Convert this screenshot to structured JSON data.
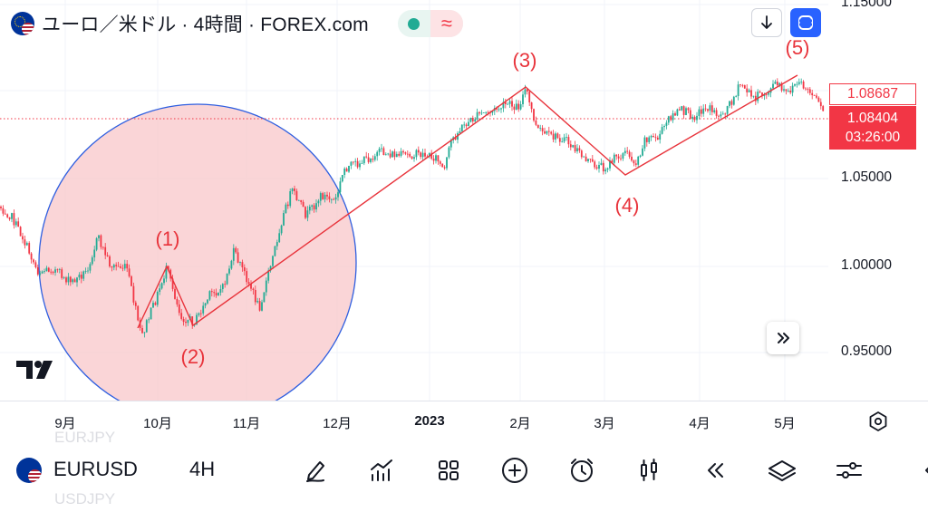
{
  "header": {
    "title": "ユーロ／米ドル · 4時間 · FOREX.com",
    "market_status_icon": "market-open-dot",
    "session_icon": "approx-wave",
    "download_icon": "arrow-down-icon",
    "fullscreen_icon": "fullscreen-icon",
    "wave_symbol": "≈"
  },
  "price_axis": {
    "labels": [
      "1.15000",
      "1.05000",
      "1.00000",
      "0.95000"
    ],
    "alert_price": "1.08687",
    "current_price": "1.08404",
    "countdown": "03:26:00"
  },
  "time_axis": {
    "labels": [
      "9月",
      "10月",
      "11月",
      "12月",
      "2023",
      "2月",
      "3月",
      "4月",
      "5月"
    ]
  },
  "annotations": {
    "wave_labels": [
      "(1)",
      "(2)",
      "(3)",
      "(4)",
      "(5)"
    ]
  },
  "chart_data": {
    "type": "candlestick",
    "symbol": "EURUSD",
    "interval": "4H",
    "y_ticks": [
      0.95,
      1.0,
      1.05,
      1.15
    ],
    "x_ticks": [
      "9月",
      "10月",
      "11月",
      "12月",
      "2023",
      "2月",
      "3月",
      "4月",
      "5月"
    ],
    "approx_path": [
      {
        "t": "8月下旬",
        "price": 1.0
      },
      {
        "t": "9月上旬",
        "price": 0.995
      },
      {
        "t": "9月中旬",
        "price": 1.0
      },
      {
        "t": "9月下旬",
        "price": 0.96
      },
      {
        "t": "10月上旬",
        "price": 1.0
      },
      {
        "t": "10月中旬",
        "price": 0.97
      },
      {
        "t": "11月上旬",
        "price": 0.975
      },
      {
        "t": "11月中旬",
        "price": 1.04
      },
      {
        "t": "12月上旬",
        "price": 1.055
      },
      {
        "t": "12月下旬",
        "price": 1.065
      },
      {
        "t": "1月上旬",
        "price": 1.06
      },
      {
        "t": "1月下旬",
        "price": 1.09
      },
      {
        "t": "2月上旬",
        "price": 1.1
      },
      {
        "t": "2月中旬",
        "price": 1.07
      },
      {
        "t": "3月上旬",
        "price": 1.054
      },
      {
        "t": "3月下旬",
        "price": 1.085
      },
      {
        "t": "4月中旬",
        "price": 1.095
      },
      {
        "t": "5月上旬",
        "price": 1.11
      },
      {
        "t": "5月中旬",
        "price": 1.084
      }
    ],
    "current_price": 1.08404,
    "alert_price": 1.08687
  },
  "bottom_toolbar": {
    "ghost_prev": "EURJPY",
    "ghost_next": "USDJPY",
    "symbol": "EURUSD",
    "interval": "4H",
    "tools": [
      "drawing-tools",
      "indicators",
      "layout-grid",
      "add-symbol",
      "alert",
      "chart-type",
      "replay",
      "object-tree",
      "settings"
    ]
  },
  "colors": {
    "accent_blue": "#2962ff",
    "down_red": "#f23645",
    "up_green": "#22ab94",
    "wave_red": "#e8333b",
    "circle_fill": "#f9c9cc"
  }
}
